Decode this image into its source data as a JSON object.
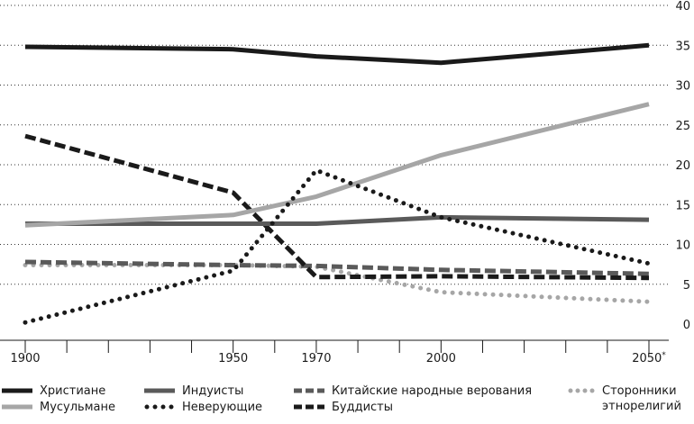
{
  "chart_data": {
    "type": "line",
    "title": "",
    "xlabel": "",
    "ylabel": "",
    "x": [
      1900,
      1950,
      1970,
      2000,
      2050
    ],
    "x_tick_labels": [
      "1900",
      "1950",
      "1970",
      "2000",
      "2050"
    ],
    "x_tick_suffix_2050": "*",
    "ylim": [
      0,
      40
    ],
    "y_ticks": [
      0,
      5,
      10,
      15,
      20,
      25,
      30,
      35,
      40
    ],
    "grid": "horizontal-dotted",
    "legend_position": "bottom",
    "series": [
      {
        "name": "Христиане",
        "key": "christians",
        "values": [
          34.8,
          34.5,
          33.6,
          32.8,
          35.0
        ],
        "color": "#1a1a1a",
        "style": "solid"
      },
      {
        "name": "Мусульмане",
        "key": "muslims",
        "values": [
          12.4,
          13.7,
          16.0,
          21.2,
          27.6
        ],
        "color": "#a6a6a6",
        "style": "solid"
      },
      {
        "name": "Индуисты",
        "key": "hindus",
        "values": [
          12.6,
          12.6,
          12.6,
          13.4,
          13.1
        ],
        "color": "#5a5a5a",
        "style": "solid"
      },
      {
        "name": "Неверующие",
        "key": "nonbelievers",
        "values": [
          0.2,
          6.7,
          19.3,
          13.4,
          7.6
        ],
        "color": "#1a1a1a",
        "style": "dotted"
      },
      {
        "name": "Китайские народные верования",
        "key": "chinese_folk",
        "values": [
          7.8,
          7.4,
          7.3,
          6.8,
          6.3
        ],
        "color": "#5a5a5a",
        "style": "dashed"
      },
      {
        "name": "Буддисты",
        "key": "buddhists",
        "values": [
          23.6,
          16.5,
          5.9,
          6.0,
          5.8
        ],
        "color": "#1a1a1a",
        "style": "dashed"
      },
      {
        "name": "Сторонники этнорелигий",
        "key": "ethnoreligious",
        "values": [
          7.4,
          7.4,
          7.2,
          4.0,
          2.8
        ],
        "color": "#a6a6a6",
        "style": "dotted"
      }
    ]
  },
  "legend": {
    "christians": "Христиане",
    "muslims": "Мусульмане",
    "hindus": "Индуисты",
    "nonbelievers": "Неверующие",
    "chinese_folk": "Китайские народные верования",
    "buddhists": "Буддисты",
    "ethnoreligious": "Сторонники этнорелигий"
  }
}
